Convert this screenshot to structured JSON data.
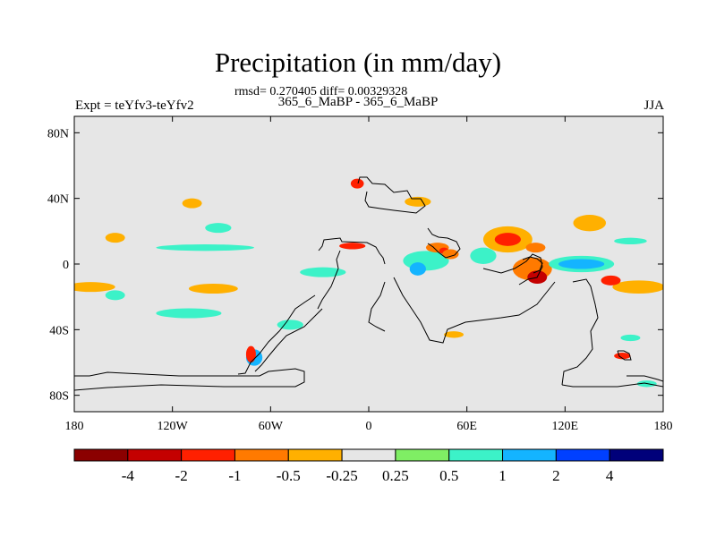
{
  "page": {
    "title": "Precipitation (in mm/day)",
    "subline": "rmsd= 0.270405 diff= 0.00329328",
    "left_label": "Expt = teYfv3-teYfv2",
    "center_label": "365_6_MaBP - 365_6_MaBP",
    "right_label": "JJA"
  },
  "chart_data": {
    "type": "heatmap",
    "title": "Precipitation (in mm/day)",
    "units": "mm/day",
    "x_axis": {
      "range": [
        -180,
        180
      ],
      "ticks": [
        -180,
        -120,
        -60,
        0,
        60,
        120,
        180
      ],
      "tick_labels": [
        "180",
        "120W",
        "60W",
        "0",
        "60E",
        "120E",
        "180"
      ]
    },
    "y_axis": {
      "range": [
        -90,
        90
      ],
      "ticks": [
        80,
        40,
        0,
        -40,
        -80
      ],
      "tick_labels": [
        "80N",
        "40N",
        "0",
        "40S",
        "80S"
      ]
    },
    "colorbar": {
      "labels": [
        "-4",
        "-2",
        "-1",
        "-0.5",
        "-0.25",
        "0.25",
        "0.5",
        "1",
        "2",
        "4"
      ],
      "levels": [
        -4,
        -2,
        -1,
        -0.5,
        -0.25,
        0.25,
        0.5,
        1,
        2,
        4
      ],
      "colors": [
        "#8b0000",
        "#c40000",
        "#ff2000",
        "#ff7a00",
        "#ffb000",
        "#e6e6e6",
        "#7fee64",
        "#3cf2c8",
        "#14b4ff",
        "#0040ff",
        "#00007a"
      ]
    },
    "anomaly_patches": [
      {
        "lon": -28,
        "lat": -5,
        "rlon": 14,
        "rlat": 3,
        "value": 0.6
      },
      {
        "lon": 35,
        "lat": 2,
        "rlon": 14,
        "rlat": 6,
        "value": 0.8
      },
      {
        "lon": 30,
        "lat": -3,
        "rlon": 5,
        "rlat": 4,
        "value": 1.3
      },
      {
        "lon": 42,
        "lat": 10,
        "rlon": 7,
        "rlat": 3,
        "value": -0.6
      },
      {
        "lon": 46,
        "lat": 8,
        "rlon": 3,
        "rlat": 2,
        "value": -1.5
      },
      {
        "lon": 50,
        "lat": 6,
        "rlon": 5,
        "rlat": 3,
        "value": -0.6
      },
      {
        "lon": 70,
        "lat": 5,
        "rlon": 8,
        "rlat": 5,
        "value": 0.6
      },
      {
        "lon": 85,
        "lat": 15,
        "rlon": 15,
        "rlat": 8,
        "value": -0.4
      },
      {
        "lon": 85,
        "lat": 15,
        "rlon": 8,
        "rlat": 4,
        "value": -1.2
      },
      {
        "lon": 102,
        "lat": 10,
        "rlon": 6,
        "rlat": 3,
        "value": -0.7
      },
      {
        "lon": 100,
        "lat": -3,
        "rlon": 12,
        "rlat": 7,
        "value": -0.6
      },
      {
        "lon": 103,
        "lat": -8,
        "rlon": 6,
        "rlat": 4,
        "value": -2.5
      },
      {
        "lon": 130,
        "lat": 0,
        "rlon": 20,
        "rlat": 5,
        "value": 0.6
      },
      {
        "lon": 130,
        "lat": 0,
        "rlon": 14,
        "rlat": 3,
        "value": 1.2
      },
      {
        "lon": 165,
        "lat": -14,
        "rlon": 16,
        "rlat": 4,
        "value": -0.4
      },
      {
        "lon": 148,
        "lat": -10,
        "rlon": 6,
        "rlat": 3,
        "value": -1.3
      },
      {
        "lon": 135,
        "lat": 25,
        "rlon": 10,
        "rlat": 5,
        "value": -0.4
      },
      {
        "lon": 160,
        "lat": 14,
        "rlon": 10,
        "rlat": 2,
        "value": 0.6
      },
      {
        "lon": -170,
        "lat": -14,
        "rlon": 15,
        "rlat": 3,
        "value": -0.4
      },
      {
        "lon": -95,
        "lat": -15,
        "rlon": 15,
        "rlat": 3,
        "value": -0.4
      },
      {
        "lon": -155,
        "lat": -19,
        "rlon": 6,
        "rlat": 3,
        "value": 0.6
      },
      {
        "lon": -100,
        "lat": 10,
        "rlon": 30,
        "rlat": 2,
        "value": 0.5
      },
      {
        "lon": -155,
        "lat": 16,
        "rlon": 6,
        "rlat": 3,
        "value": -0.5
      },
      {
        "lon": -110,
        "lat": -30,
        "rlon": 20,
        "rlat": 3,
        "value": 0.5
      },
      {
        "lon": -108,
        "lat": 37,
        "rlon": 6,
        "rlat": 3,
        "value": -0.4
      },
      {
        "lon": -92,
        "lat": 22,
        "rlon": 8,
        "rlat": 3,
        "value": 0.5
      },
      {
        "lon": -10,
        "lat": 11,
        "rlon": 8,
        "rlat": 2,
        "value": -1.3
      },
      {
        "lon": -48,
        "lat": -37,
        "rlon": 8,
        "rlat": 3,
        "value": 0.6
      },
      {
        "lon": -70,
        "lat": -57,
        "rlon": 5,
        "rlat": 5,
        "value": 1.2
      },
      {
        "lon": -72,
        "lat": -55,
        "rlon": 3,
        "rlat": 5,
        "value": -1.3
      },
      {
        "lon": 52,
        "lat": -43,
        "rlon": 6,
        "rlat": 2,
        "value": -0.5
      },
      {
        "lon": 155,
        "lat": -56,
        "rlon": 5,
        "rlat": 2,
        "value": -1.2
      },
      {
        "lon": 160,
        "lat": -45,
        "rlon": 6,
        "rlat": 2,
        "value": 0.5
      },
      {
        "lon": -7,
        "lat": 49,
        "rlon": 4,
        "rlat": 3,
        "value": -1.5
      },
      {
        "lon": 30,
        "lat": 38,
        "rlon": 8,
        "rlat": 3,
        "value": -0.4
      },
      {
        "lon": 170,
        "lat": -73,
        "rlon": 6,
        "rlat": 2,
        "value": 0.5
      }
    ]
  }
}
